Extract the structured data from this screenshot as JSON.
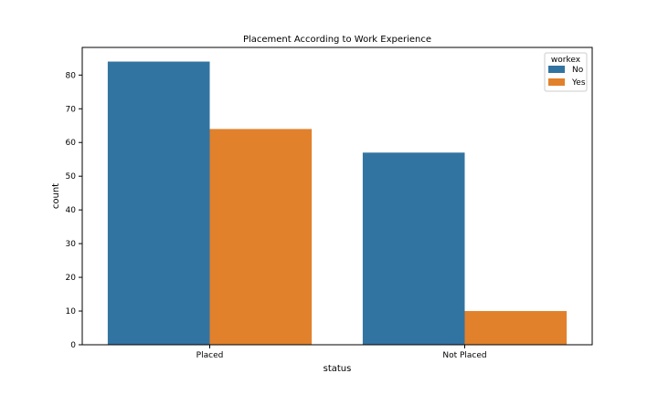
{
  "chart_data": {
    "type": "bar",
    "title": "Placement According to Work Experience",
    "xlabel": "status",
    "ylabel": "count",
    "categories": [
      "Placed",
      "Not Placed"
    ],
    "series": [
      {
        "name": "No",
        "values": [
          84,
          57
        ],
        "color": "#3274a1"
      },
      {
        "name": "Yes",
        "values": [
          64,
          10
        ],
        "color": "#e1812c"
      }
    ],
    "ylim": [
      0,
      88.2
    ],
    "yticks": [
      0,
      10,
      20,
      30,
      40,
      50,
      60,
      70,
      80
    ],
    "legend": {
      "title": "workex",
      "placement": "top-right"
    },
    "grid": false
  }
}
